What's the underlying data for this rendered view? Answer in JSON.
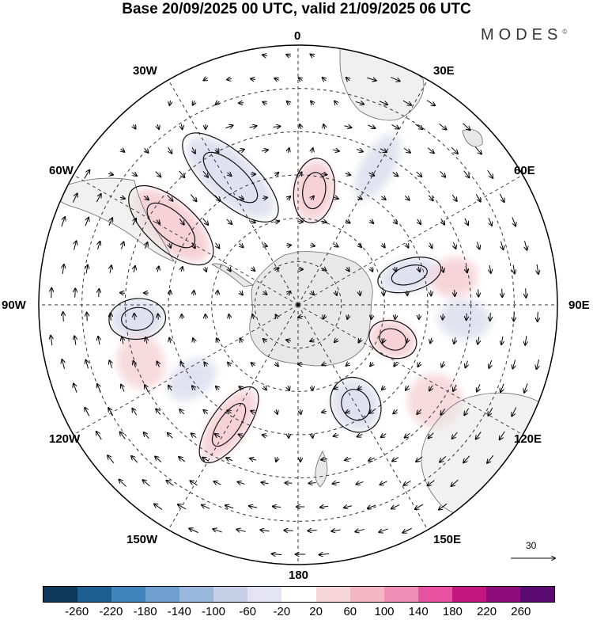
{
  "title": "Base 20/09/2025 00 UTC, valid 21/09/2025 06 UTC",
  "brand": "MODES",
  "brand_mark": "©",
  "longitude_labels": {
    "top": "0",
    "bottom": "180",
    "left": "90W",
    "right": "90E",
    "w30": "30W",
    "e30": "30E",
    "w60": "60W",
    "e60": "60E",
    "w120": "120W",
    "e120": "120E",
    "w150": "150W",
    "e150": "150E"
  },
  "vector_scale_label": "30",
  "legend": {
    "ticks": [
      "-260",
      "-220",
      "-180",
      "-140",
      "-100",
      "-60",
      "-20",
      "20",
      "60",
      "100",
      "140",
      "180",
      "220",
      "260"
    ],
    "colors": [
      "#0d3a5c",
      "#1d5f8e",
      "#3f85bb",
      "#6ea0cf",
      "#9ab7dc",
      "#c6cfe8",
      "#e3e3f1",
      "#ffffff",
      "#f6d6da",
      "#f4b5c5",
      "#ef8fb6",
      "#e6529f",
      "#c2177f",
      "#8e0d7a",
      "#5a0b72"
    ]
  },
  "anomaly_fields": [
    {
      "name": "neg-southatlantic",
      "lon": -28,
      "colat": 50,
      "sx": 12,
      "sy": 30,
      "rot": -20,
      "level": -7
    },
    {
      "name": "pos-patagonia",
      "lon": -58,
      "colat": 52,
      "sx": 12,
      "sy": 26,
      "rot": 10,
      "level": 7
    },
    {
      "name": "pos-prime",
      "lon": 8,
      "colat": 40,
      "sx": 10,
      "sy": 16,
      "rot": 0,
      "level": 4
    },
    {
      "name": "neg-southpacific",
      "lon": -95,
      "colat": 56,
      "sx": 10,
      "sy": 14,
      "rot": 0,
      "level": -4
    },
    {
      "name": "pos-centralpacific",
      "lon": -150,
      "colat": 48,
      "sx": 9,
      "sy": 22,
      "rot": 5,
      "level": 4
    },
    {
      "name": "neg-pacific-mid",
      "lon": -125,
      "colat": 45,
      "sx": 9,
      "sy": 14,
      "rot": 0,
      "level": -2
    },
    {
      "name": "pos-pacific-east",
      "lon": -110,
      "colat": 58,
      "sx": 14,
      "sy": 12,
      "rot": 0,
      "level": 1
    },
    {
      "name": "neg-east",
      "lon": 30,
      "colat": 55,
      "sx": 8,
      "sy": 20,
      "rot": 0,
      "level": -2
    },
    {
      "name": "neg-indianocean",
      "lon": 75,
      "colat": 40,
      "sx": 8,
      "sy": 16,
      "rot": 0,
      "level": -3
    },
    {
      "name": "neg-indianocean2",
      "lon": 95,
      "colat": 58,
      "sx": 10,
      "sy": 14,
      "rot": 0,
      "level": -2
    },
    {
      "name": "pos-indian",
      "lon": 110,
      "colat": 35,
      "sx": 9,
      "sy": 12,
      "rot": 0,
      "level": 4
    },
    {
      "name": "pos-indian2",
      "lon": 80,
      "colat": 55,
      "sx": 10,
      "sy": 12,
      "rot": 0,
      "level": 2
    },
    {
      "name": "neg-australia",
      "lon": 150,
      "colat": 40,
      "sx": 12,
      "sy": 14,
      "rot": 0,
      "level": -3
    },
    {
      "name": "pos-australia",
      "lon": 125,
      "colat": 58,
      "sx": 14,
      "sy": 14,
      "rot": 0,
      "level": 1
    }
  ]
}
